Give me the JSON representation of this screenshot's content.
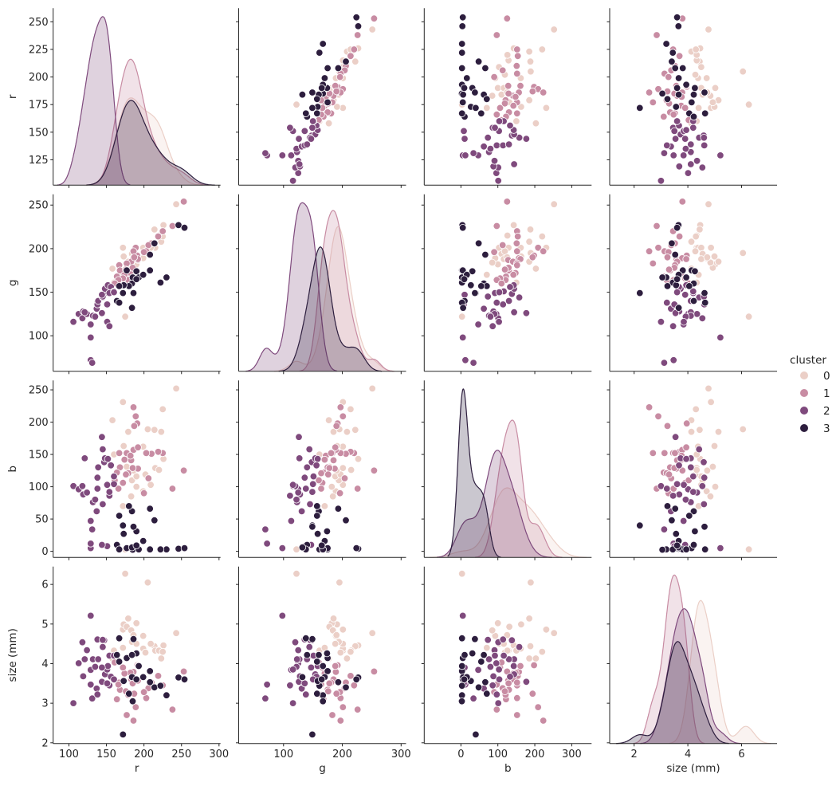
{
  "chart_data": {
    "type": "scatter",
    "layout": "pairplot",
    "diagonal": "kde",
    "grid": false,
    "legend_placement": "right",
    "variables": [
      {
        "name": "r",
        "label": "r",
        "xlim": [
          79,
          302
        ],
        "ylim": [
          102,
          262.3
        ],
        "xticks": [
          "100",
          "150",
          "200",
          "250",
          "300"
        ],
        "yticks": [
          "125",
          "150",
          "175",
          "200",
          "225",
          "250"
        ]
      },
      {
        "name": "g",
        "label": "g",
        "xlim": [
          23.7,
          308.4
        ],
        "ylim": [
          59.2,
          262.3
        ],
        "xticks": [
          "100",
          "200",
          "300"
        ],
        "yticks": [
          "100",
          "150",
          "200",
          "250"
        ]
      },
      {
        "name": "b",
        "label": "b",
        "xlim": [
          -99.3,
          353.7
        ],
        "ylim": [
          -9.5,
          264.5
        ],
        "xticks": [
          "0",
          "100",
          "200",
          "300"
        ],
        "yticks": [
          "0",
          "50",
          "100",
          "150",
          "200",
          "250"
        ]
      },
      {
        "name": "size (mm)",
        "label": "size (mm)",
        "xlim": [
          1.09,
          7.32
        ],
        "ylim": [
          1.98,
          6.45
        ],
        "xticks": [
          "2",
          "4",
          "6"
        ],
        "yticks": [
          "2",
          "3",
          "4",
          "5",
          "6"
        ]
      }
    ],
    "hue": {
      "title": "cluster",
      "levels": [
        "0",
        "1",
        "2",
        "3"
      ],
      "colors": [
        "#ebcfc7",
        "#c88ca3",
        "#7f4a7d",
        "#2d1e3e"
      ]
    },
    "points": {
      "columns": [
        "r",
        "g",
        "b",
        "size (mm)",
        "cluster"
      ],
      "rows": [
        [
          243,
          251,
          252,
          4.77,
          0
        ],
        [
          226,
          227,
          143,
          4.46,
          0
        ],
        [
          214,
          222,
          188,
          4.44,
          0
        ],
        [
          223,
          208,
          185,
          4.13,
          0
        ],
        [
          215,
          201,
          129,
          4.33,
          0
        ],
        [
          199,
          201,
          162,
          4.38,
          0
        ],
        [
          209,
          201,
          103,
          4.5,
          0
        ],
        [
          199,
          189,
          93,
          4.7,
          0
        ],
        [
          205,
          195,
          189,
          6.05,
          0
        ],
        [
          184,
          194,
          110,
          4.55,
          0
        ],
        [
          172,
          201,
          231,
          4.86,
          0
        ],
        [
          173,
          191,
          163,
          4.99,
          0
        ],
        [
          190,
          182,
          100,
          5.02,
          0
        ],
        [
          190,
          188,
          116,
          4.5,
          0
        ],
        [
          158,
          177,
          203,
          4.13,
          0
        ],
        [
          160,
          161,
          150,
          4.33,
          0
        ],
        [
          175,
          122,
          3,
          6.27,
          0
        ],
        [
          202,
          197,
          119,
          4.28,
          0
        ],
        [
          179,
          185,
          185,
          5.14,
          0
        ],
        [
          177,
          178,
          131,
          4.93,
          0
        ],
        [
          183,
          184,
          85,
          4.84,
          0
        ],
        [
          172,
          170,
          70,
          4.4,
          0
        ],
        [
          220,
          215,
          126,
          4.33,
          0
        ],
        [
          225,
          214,
          220,
          4.3,
          0
        ],
        [
          186,
          190,
          125,
          4.72,
          0
        ],
        [
          253,
          254,
          125,
          3.8,
          1
        ],
        [
          238,
          226,
          97,
          2.84,
          1
        ],
        [
          225,
          220,
          152,
          3.45,
          1
        ],
        [
          219,
          214,
          154,
          3.69,
          1
        ],
        [
          210,
          206,
          151,
          3.52,
          1
        ],
        [
          206,
          204,
          113,
          3.38,
          1
        ],
        [
          203,
          197,
          152,
          3.13,
          1
        ],
        [
          200,
          196,
          90,
          3.28,
          1
        ],
        [
          192,
          187,
          128,
          3.57,
          1
        ],
        [
          191,
          192,
          198,
          3.96,
          1
        ],
        [
          189,
          201,
          209,
          2.9,
          1
        ],
        [
          186,
          197,
          223,
          2.56,
          1
        ],
        [
          186,
          189,
          157,
          3.79,
          1
        ],
        [
          183,
          185,
          141,
          3.6,
          1
        ],
        [
          192,
          188,
          161,
          3.94,
          1
        ],
        [
          187,
          190,
          194,
          3.24,
          1
        ],
        [
          177,
          183,
          152,
          2.7,
          1
        ],
        [
          182,
          172,
          148,
          3.77,
          1
        ],
        [
          167,
          181,
          152,
          3.52,
          1
        ],
        [
          168,
          175,
          130,
          3.34,
          1
        ],
        [
          164,
          168,
          122,
          3.1,
          1
        ],
        [
          174,
          170,
          142,
          3.75,
          1
        ],
        [
          179,
          164,
          121,
          3.21,
          1
        ],
        [
          172,
          166,
          106,
          3.9,
          1
        ],
        [
          166,
          164,
          97,
          3.47,
          1
        ],
        [
          161,
          160,
          110,
          4.03,
          1
        ],
        [
          185,
          178,
          129,
          3.5,
          1
        ],
        [
          176,
          176,
          119,
          3.3,
          1
        ],
        [
          106,
          116,
          101,
          3.0,
          2
        ],
        [
          113,
          125,
          96,
          4.01,
          2
        ],
        [
          118,
          120,
          101,
          4.54,
          2
        ],
        [
          119,
          128,
          88,
          3.68,
          2
        ],
        [
          124,
          125,
          91,
          4.34,
          2
        ],
        [
          121,
          127,
          144,
          4.11,
          2
        ],
        [
          129,
          113,
          47,
          3.84,
          2
        ],
        [
          129,
          98,
          5,
          5.21,
          2
        ],
        [
          129,
          72,
          12,
          3.47,
          2
        ],
        [
          131,
          69,
          34,
          3.12,
          2
        ],
        [
          132,
          123,
          76,
          4.11,
          2
        ],
        [
          135,
          122,
          80,
          3.92,
          2
        ],
        [
          137,
          131,
          62,
          3.37,
          2
        ],
        [
          138,
          138,
          97,
          3.22,
          2
        ],
        [
          138,
          136,
          114,
          4.61,
          2
        ],
        [
          139,
          140,
          130,
          4.11,
          2
        ],
        [
          144,
          126,
          177,
          3.54,
          2
        ],
        [
          145,
          144,
          158,
          4.42,
          2
        ],
        [
          147,
          148,
          138,
          4.59,
          2
        ],
        [
          148,
          154,
          144,
          3.73,
          2
        ],
        [
          151,
          116,
          103,
          3.85,
          2
        ],
        [
          154,
          111,
          86,
          3.45,
          2
        ],
        [
          152,
          158,
          143,
          3.94,
          2
        ],
        [
          156,
          156,
          133,
          3.67,
          2
        ],
        [
          154,
          149,
          92,
          4.2,
          2
        ],
        [
          160,
          151,
          116,
          4.2,
          2
        ],
        [
          145,
          145,
          73,
          4.6,
          2
        ],
        [
          151,
          136,
          8,
          3.5,
          2
        ],
        [
          144,
          147,
          10,
          3.9,
          2
        ],
        [
          160,
          150,
          104,
          3.6,
          2
        ],
        [
          246,
          227,
          4,
          3.65,
          3
        ],
        [
          254,
          224,
          5,
          3.6,
          3
        ],
        [
          214,
          206,
          48,
          3.4,
          3
        ],
        [
          208,
          193,
          66,
          3.53,
          3
        ],
        [
          208,
          175,
          3,
          3.81,
          3
        ],
        [
          230,
          167,
          3,
          3.2,
          3
        ],
        [
          222,
          161,
          3,
          3.44,
          3
        ],
        [
          177,
          175,
          5,
          4.14,
          3
        ],
        [
          185,
          167,
          2.5,
          3.05,
          3
        ],
        [
          190,
          174,
          31,
          4.26,
          3
        ],
        [
          193,
          167,
          3,
          3.94,
          3
        ],
        [
          184,
          160,
          62,
          4.22,
          3
        ],
        [
          180,
          157,
          70,
          3.24,
          3
        ],
        [
          173,
          158,
          27,
          3.56,
          3
        ],
        [
          167,
          157,
          55,
          4.05,
          3
        ],
        [
          172,
          149,
          40,
          2.21,
          3
        ],
        [
          186,
          149,
          38,
          4.62,
          3
        ],
        [
          164,
          140,
          10,
          4.22,
          3
        ],
        [
          167,
          138,
          3,
          4.64,
          3
        ],
        [
          184,
          132,
          6,
          3.66,
          3
        ],
        [
          199,
          170,
          16,
          3.66,
          3
        ],
        [
          190,
          165,
          9,
          3.6,
          3
        ]
      ]
    }
  }
}
